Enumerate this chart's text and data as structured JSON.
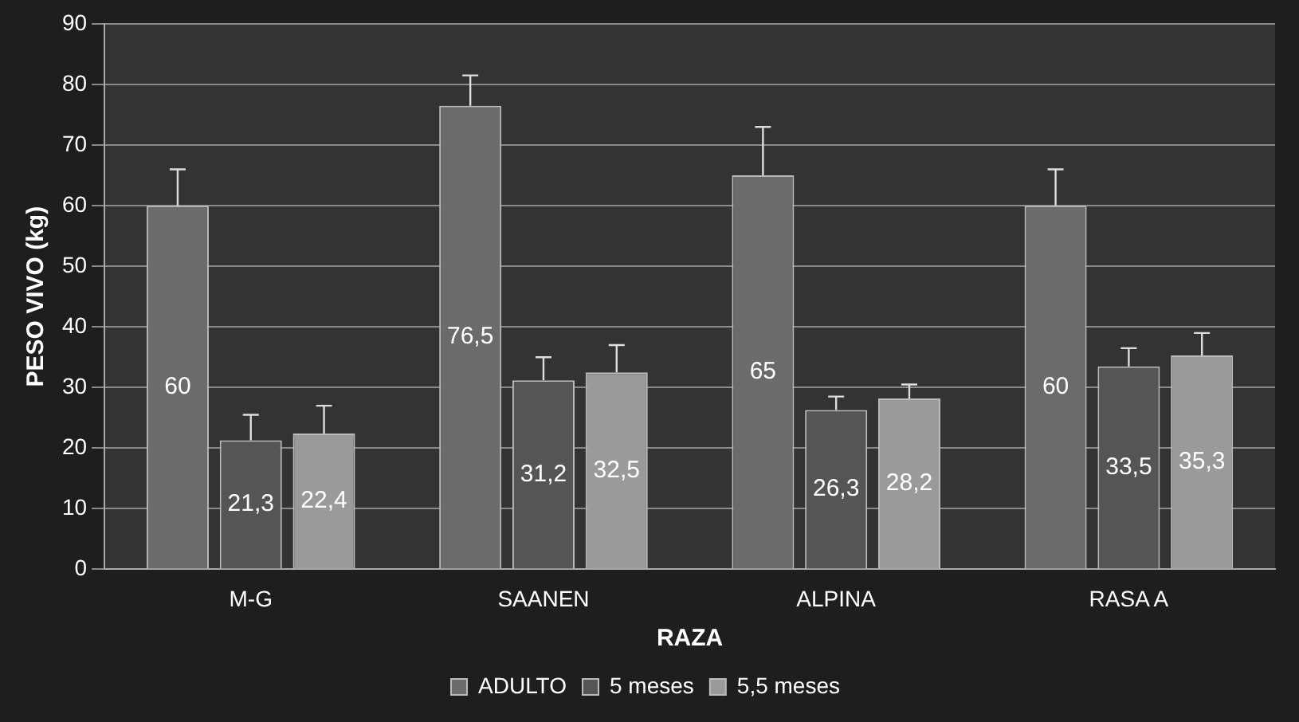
{
  "chart_data": {
    "type": "bar",
    "xlabel": "RAZA",
    "ylabel": "PESO VIVO (kg)",
    "categories": [
      "M-G",
      "SAANEN",
      "ALPINA",
      "RASA A"
    ],
    "series": [
      {
        "name": "ADULTO",
        "color": "#6b6b6b",
        "values": [
          60,
          76.5,
          65,
          60
        ],
        "value_labels": [
          "60",
          "76,5",
          "65",
          "60"
        ],
        "errors": [
          [
            60,
            66
          ],
          [
            76.5,
            81.5
          ],
          [
            65,
            73
          ],
          [
            60,
            66
          ]
        ]
      },
      {
        "name": "5 meses",
        "color": "#555555",
        "values": [
          21.3,
          31.2,
          26.3,
          33.5
        ],
        "value_labels": [
          "21,3",
          "31,2",
          "26,3",
          "33,5"
        ],
        "errors": [
          [
            21.3,
            25.5
          ],
          [
            31.2,
            35
          ],
          [
            26.3,
            28.5
          ],
          [
            33.5,
            36.5
          ]
        ]
      },
      {
        "name": "5,5 meses",
        "color": "#9a9a9a",
        "values": [
          22.4,
          32.5,
          28.2,
          35.3
        ],
        "value_labels": [
          "22,4",
          "32,5",
          "28,2",
          "35,3"
        ],
        "errors": [
          [
            22.4,
            27
          ],
          [
            32.5,
            37
          ],
          [
            28.2,
            30.5
          ],
          [
            35.3,
            39
          ]
        ]
      }
    ],
    "ylim": [
      0,
      90
    ],
    "yticks": [
      0,
      10,
      20,
      30,
      40,
      50,
      60,
      70,
      80,
      90
    ],
    "grid": "y",
    "legend": "bottom"
  }
}
